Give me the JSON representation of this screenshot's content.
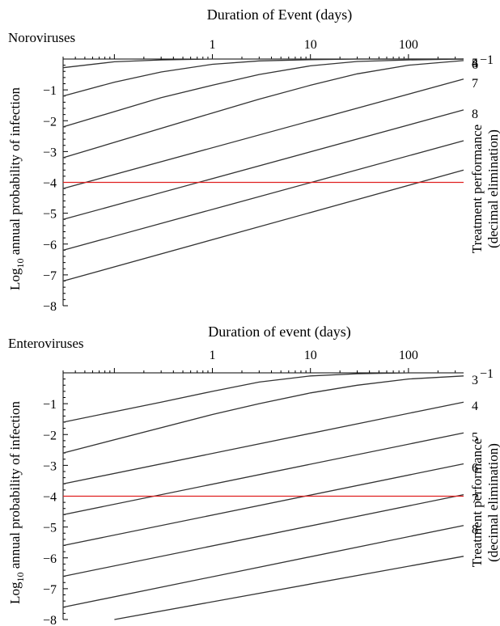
{
  "chart_data": [
    {
      "type": "line",
      "panel_title": "Noroviruses",
      "title": "Duration of Event (days)",
      "xlabel": "Duration of Event (days)",
      "ylabel_parts": [
        "Log",
        "10",
        " annual probability of infection"
      ],
      "right_label_lines": [
        "Treatment performance",
        "(decimal elimination)"
      ],
      "x_scale": "log",
      "xlim": [
        0.03,
        365
      ],
      "ylim": [
        -8,
        0
      ],
      "x_tick_labels": [
        "1",
        "10",
        "100"
      ],
      "x_ticks": [
        1,
        10,
        100
      ],
      "y_tick_labels": [
        "−1",
        "−2",
        "−3",
        "−4",
        "−5",
        "−6",
        "−7",
        "−8"
      ],
      "y_ticks": [
        -1,
        -2,
        -3,
        -4,
        -5,
        -6,
        -7,
        -8
      ],
      "reference_line": {
        "y": -4,
        "color": "#e02020"
      },
      "series": [
        {
          "label": "−1",
          "x": [
            0.03,
            0.1,
            0.3,
            1,
            365
          ],
          "y": [
            -0.28,
            -0.09,
            -0.03,
            0,
            0
          ]
        },
        {
          "label": "4",
          "x": [
            0.03,
            0.1,
            0.3,
            1,
            3,
            10,
            30,
            100,
            365
          ],
          "y": [
            -1.2,
            -0.75,
            -0.42,
            -0.17,
            -0.06,
            -0.02,
            0,
            0,
            0
          ]
        },
        {
          "label": "5",
          "x": [
            0.03,
            0.3,
            1,
            3,
            10,
            30,
            100,
            365
          ],
          "y": [
            -2.2,
            -1.25,
            -0.85,
            -0.5,
            -0.22,
            -0.08,
            -0.03,
            0
          ]
        },
        {
          "label": "6",
          "x": [
            0.03,
            1,
            3,
            10,
            30,
            100,
            365
          ],
          "y": [
            -3.2,
            -1.75,
            -1.3,
            -0.85,
            -0.48,
            -0.2,
            -0.05
          ]
        },
        {
          "label": "7",
          "x": [
            0.03,
            365
          ],
          "y": [
            -4.2,
            -0.65
          ]
        },
        {
          "label": "8",
          "x": [
            0.03,
            365
          ],
          "y": [
            -5.2,
            -1.65
          ]
        },
        {
          "label": "",
          "x": [
            0.03,
            365
          ],
          "y": [
            -6.2,
            -2.65
          ]
        },
        {
          "label": "",
          "x": [
            0.03,
            365
          ],
          "y": [
            -7.2,
            -3.6
          ]
        }
      ]
    },
    {
      "type": "line",
      "panel_title": "Enteroviruses",
      "title": "Duration of event (days)",
      "xlabel": "Duration of event (days)",
      "ylabel_parts": [
        "Log",
        "10",
        " annual probability of infection"
      ],
      "right_label_lines": [
        "Treatment performance",
        "(decimal elimination)"
      ],
      "x_scale": "log",
      "xlim": [
        0.03,
        365
      ],
      "ylim": [
        -8,
        0
      ],
      "x_tick_labels": [
        "1",
        "10",
        "100"
      ],
      "x_ticks": [
        1,
        10,
        100
      ],
      "y_tick_labels": [
        "−1",
        "−2",
        "−3",
        "−4",
        "−5",
        "−6",
        "−7",
        "−8"
      ],
      "y_ticks": [
        -1,
        -2,
        -3,
        -4,
        -5,
        -6,
        -7,
        -8
      ],
      "reference_line": {
        "y": -4,
        "color": "#e02020"
      },
      "series": [
        {
          "label": "−1",
          "x": [
            0.03,
            0.3,
            1,
            3,
            10,
            30,
            100,
            365
          ],
          "y": [
            -1.6,
            -0.95,
            -0.6,
            -0.3,
            -0.1,
            -0.03,
            0,
            0
          ]
        },
        {
          "label": "3",
          "x": [
            0.03,
            1,
            3,
            10,
            30,
            100,
            365
          ],
          "y": [
            -2.6,
            -1.35,
            -1.0,
            -0.65,
            -0.4,
            -0.2,
            -0.1
          ]
        },
        {
          "label": "4",
          "x": [
            0.03,
            365
          ],
          "y": [
            -3.6,
            -0.95
          ]
        },
        {
          "label": "5",
          "x": [
            0.03,
            365
          ],
          "y": [
            -4.6,
            -1.95
          ]
        },
        {
          "label": "6",
          "x": [
            0.03,
            365
          ],
          "y": [
            -5.6,
            -2.95
          ]
        },
        {
          "label": "7",
          "x": [
            0.03,
            365
          ],
          "y": [
            -6.6,
            -3.95
          ]
        },
        {
          "label": "8",
          "x": [
            0.03,
            365
          ],
          "y": [
            -7.6,
            -4.95
          ]
        },
        {
          "label": "",
          "x": [
            0.1,
            365
          ],
          "y": [
            -8,
            -5.95
          ]
        }
      ]
    }
  ]
}
